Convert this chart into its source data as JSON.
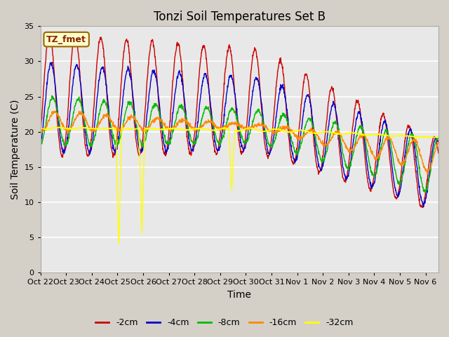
{
  "title": "Tonzi Soil Temperatures Set B",
  "xlabel": "Time",
  "ylabel": "Soil Temperature (C)",
  "ylim": [
    0,
    35
  ],
  "yticks": [
    0,
    5,
    10,
    15,
    20,
    25,
    30,
    35
  ],
  "legend_label": "TZ_fmet",
  "series": [
    {
      "label": "-2cm",
      "color": "#cc0000"
    },
    {
      "label": "-4cm",
      "color": "#0000cc"
    },
    {
      "label": "-8cm",
      "color": "#00bb00"
    },
    {
      "label": "-16cm",
      "color": "#ff8800"
    },
    {
      "label": "-32cm",
      "color": "#ffff00"
    }
  ],
  "xtick_labels": [
    "Oct 22",
    "Oct 23",
    "Oct 24",
    "Oct 25",
    "Oct 26",
    "Oct 27",
    "Oct 28",
    "Oct 29",
    "Oct 30",
    "Oct 31",
    "Nov 1",
    "Nov 2",
    "Nov 3",
    "Nov 4",
    "Nov 5",
    "Nov 6"
  ],
  "fig_bg": "#d4d0c8",
  "plot_bg": "#e8e8e8",
  "grid_color": "#ffffff",
  "n_days": 15.5,
  "points_per_day": 96
}
